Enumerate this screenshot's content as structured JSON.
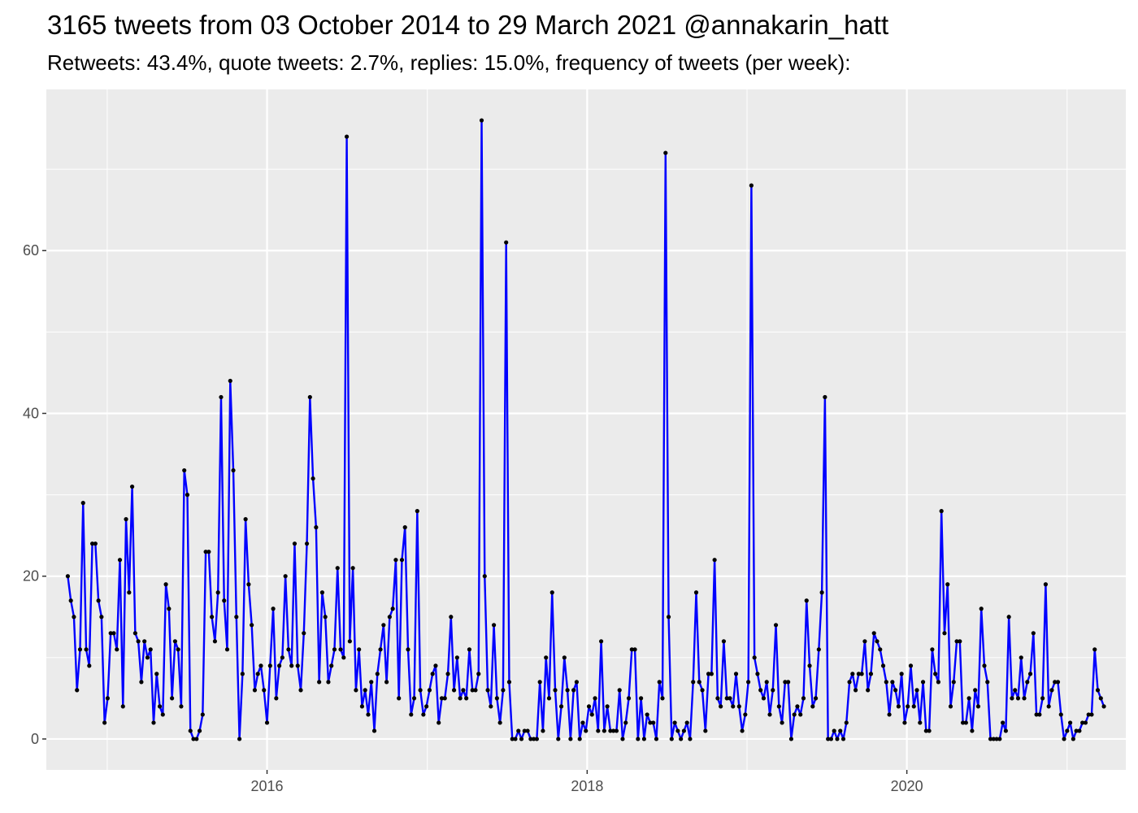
{
  "chart_data": {
    "type": "line",
    "title": "3165 tweets from 03 October 2014 to 29 March 2021 @annakarin_hatt",
    "subtitle": "Retweets: 43.4%, quote tweets: 2.7%, replies: 15.0%, frequency of tweets (per week):",
    "xlabel": "",
    "ylabel": "",
    "x_start": "2014-10-03",
    "x_step_days": 7,
    "xlim": [
      "2014-08-15",
      "2021-05-15"
    ],
    "ylim": [
      -3.8,
      79.8
    ],
    "x_ticks": [
      {
        "value": "2016-01-01",
        "label": "2016"
      },
      {
        "value": "2018-01-01",
        "label": "2018"
      },
      {
        "value": "2020-01-01",
        "label": "2020"
      }
    ],
    "y_ticks": [
      0,
      20,
      40,
      60
    ],
    "grid": true,
    "line_color": "#0000ff",
    "point_color": "#000000",
    "panel_background": "#ebebeb",
    "grid_color": "#ffffff",
    "values": [
      20,
      17,
      15,
      6,
      11,
      29,
      11,
      9,
      24,
      24,
      17,
      15,
      2,
      5,
      13,
      13,
      11,
      22,
      4,
      27,
      18,
      31,
      13,
      12,
      7,
      12,
      10,
      11,
      2,
      8,
      4,
      3,
      19,
      16,
      5,
      12,
      11,
      4,
      33,
      30,
      1,
      0,
      0,
      1,
      3,
      23,
      23,
      15,
      12,
      18,
      42,
      17,
      11,
      44,
      33,
      15,
      0,
      8,
      27,
      19,
      14,
      6,
      8,
      9,
      6,
      2,
      9,
      16,
      5,
      9,
      10,
      20,
      11,
      9,
      24,
      9,
      6,
      13,
      24,
      42,
      32,
      26,
      7,
      18,
      15,
      7,
      9,
      11,
      21,
      11,
      10,
      74,
      12,
      21,
      6,
      11,
      4,
      6,
      3,
      7,
      1,
      8,
      11,
      14,
      7,
      15,
      16,
      22,
      5,
      22,
      26,
      11,
      3,
      5,
      28,
      6,
      3,
      4,
      6,
      8,
      9,
      2,
      5,
      5,
      8,
      15,
      6,
      10,
      5,
      6,
      5,
      11,
      6,
      6,
      8,
      76,
      20,
      6,
      4,
      14,
      5,
      2,
      6,
      61,
      7,
      0,
      0,
      1,
      0,
      1,
      1,
      0,
      0,
      0,
      7,
      1,
      10,
      5,
      18,
      6,
      0,
      4,
      10,
      6,
      0,
      6,
      7,
      0,
      2,
      1,
      4,
      3,
      5,
      1,
      12,
      1,
      4,
      1,
      1,
      1,
      6,
      0,
      2,
      5,
      11,
      11,
      0,
      5,
      0,
      3,
      2,
      2,
      0,
      7,
      5,
      72,
      15,
      0,
      2,
      1,
      0,
      1,
      2,
      0,
      7,
      18,
      7,
      6,
      1,
      8,
      8,
      22,
      5,
      4,
      12,
      5,
      5,
      4,
      8,
      4,
      1,
      3,
      7,
      68,
      10,
      8,
      6,
      5,
      7,
      3,
      6,
      14,
      4,
      2,
      7,
      7,
      0,
      3,
      4,
      3,
      5,
      17,
      9,
      4,
      5,
      11,
      18,
      42,
      0,
      0,
      1,
      0,
      1,
      0,
      2,
      7,
      8,
      6,
      8,
      8,
      12,
      6,
      8,
      13,
      12,
      11,
      9,
      7,
      3,
      7,
      6,
      4,
      8,
      2,
      4,
      9,
      4,
      6,
      2,
      7,
      1,
      1,
      11,
      8,
      7,
      28,
      13,
      19,
      4,
      7,
      12,
      12,
      2,
      2,
      5,
      1,
      6,
      4,
      16,
      9,
      7,
      0,
      0,
      0,
      0,
      2,
      1,
      15,
      5,
      6,
      5,
      10,
      5,
      7,
      8,
      13,
      3,
      3,
      5,
      19,
      4,
      6,
      7,
      7,
      3,
      0,
      1,
      2,
      0,
      1,
      1,
      2,
      2,
      3,
      3,
      11,
      6,
      5,
      4
    ]
  }
}
